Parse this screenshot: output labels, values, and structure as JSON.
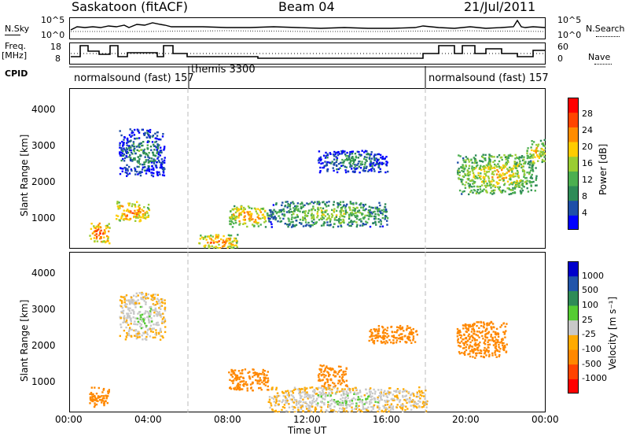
{
  "header": {
    "title_left": "Saskatoon (fitACF)",
    "title_center": "Beam 04",
    "title_right": "21/Jul/2011"
  },
  "left_labels": {
    "nsky": "N.Sky",
    "freq": "Freq.",
    "mhz": "[MHz]",
    "cpid": "CPID"
  },
  "right_labels": {
    "nsearch": "N.Search",
    "nave": "Nave"
  },
  "strip_ticks": {
    "nsky_left": [
      "10^5",
      "10^0"
    ],
    "nsky_right": [
      "10^5",
      "10^0"
    ],
    "freq_left": [
      "18",
      "8"
    ],
    "freq_right": [
      "60",
      "0"
    ]
  },
  "cpid_segments": [
    {
      "label": "normalsound (fast)  157"
    },
    {
      "label": "themis 3300"
    },
    {
      "label": "normalsound (fast)  157"
    }
  ],
  "colors": {
    "power_scale": [
      "#0000ff",
      "#1e4fa8",
      "#2e8b57",
      "#4caf50",
      "#9acd32",
      "#ffcc00",
      "#ff8c00",
      "#ff4500",
      "#ff0000"
    ],
    "velocity_scale": [
      "#0000cc",
      "#2255aa",
      "#2e8b57",
      "#55cc33",
      "#c8c8c8",
      "#ffaa00",
      "#ff8800",
      "#ff4400",
      "#ff0000"
    ]
  },
  "chart_data": [
    {
      "type": "heatmap",
      "title": "Power",
      "xlabel": "Time UT",
      "ylabel": "Slant Range [km]",
      "xlim": [
        "00:00",
        "24:00"
      ],
      "ylim": [
        180,
        4600
      ],
      "x_ticks": [
        "00:00",
        "04:00",
        "08:00",
        "12:00",
        "16:00",
        "20:00",
        "00:00"
      ],
      "y_ticks": [
        "1000",
        "2000",
        "3000",
        "4000"
      ],
      "colorbar": {
        "label": "Power [dB]",
        "ticks": [
          "4",
          "8",
          "12",
          "16",
          "20",
          "24",
          "28"
        ]
      },
      "regions": [
        {
          "t0": 1.0,
          "t1": 2.0,
          "r0": 350,
          "r1": 900,
          "value": 26
        },
        {
          "t0": 2.3,
          "t1": 4.0,
          "r0": 950,
          "r1": 1500,
          "value": 24
        },
        {
          "t0": 2.5,
          "t1": 4.8,
          "r0": 2200,
          "r1": 3500,
          "value": 8
        },
        {
          "t0": 6.5,
          "t1": 8.5,
          "r0": 200,
          "r1": 600,
          "value": 24
        },
        {
          "t0": 8.0,
          "t1": 10.0,
          "r0": 800,
          "r1": 1400,
          "value": 22
        },
        {
          "t0": 10.0,
          "t1": 16.0,
          "r0": 800,
          "r1": 1500,
          "value": 14
        },
        {
          "t0": 12.5,
          "t1": 16.0,
          "r0": 2300,
          "r1": 2900,
          "value": 8
        },
        {
          "t0": 19.5,
          "t1": 23.5,
          "r0": 1700,
          "r1": 2800,
          "value": 18
        },
        {
          "t0": 23.0,
          "t1": 24.0,
          "r0": 2500,
          "r1": 3200,
          "value": 20
        }
      ]
    },
    {
      "type": "heatmap",
      "title": "Velocity",
      "xlabel": "Time UT",
      "ylabel": "Slant Range [km]",
      "xlim": [
        "00:00",
        "24:00"
      ],
      "ylim": [
        180,
        4600
      ],
      "x_ticks": [
        "00:00",
        "04:00",
        "08:00",
        "12:00",
        "16:00",
        "20:00",
        "00:00"
      ],
      "y_ticks": [
        "1000",
        "2000",
        "3000",
        "4000"
      ],
      "colorbar": {
        "label": "Velocity [m s⁻¹]",
        "ticks": [
          "1000",
          "500",
          "100",
          "25",
          "-25",
          "-100",
          "-500",
          "-1000"
        ]
      },
      "regions": [
        {
          "t0": 1.0,
          "t1": 2.0,
          "r0": 350,
          "r1": 900,
          "value": -150
        },
        {
          "t0": 2.5,
          "t1": 4.8,
          "r0": 2200,
          "r1": 3500,
          "value": 0
        },
        {
          "t0": 8.0,
          "t1": 10.0,
          "r0": 800,
          "r1": 1400,
          "value": -150
        },
        {
          "t0": 12.5,
          "t1": 14.0,
          "r0": 900,
          "r1": 1500,
          "value": -300
        },
        {
          "t0": 15.0,
          "t1": 17.5,
          "r0": 2100,
          "r1": 2600,
          "value": -300
        },
        {
          "t0": 19.5,
          "t1": 22.0,
          "r0": 1700,
          "r1": 2700,
          "value": -400
        },
        {
          "t0": 10.0,
          "t1": 18.0,
          "r0": 200,
          "r1": 900,
          "value": 0
        }
      ]
    }
  ]
}
